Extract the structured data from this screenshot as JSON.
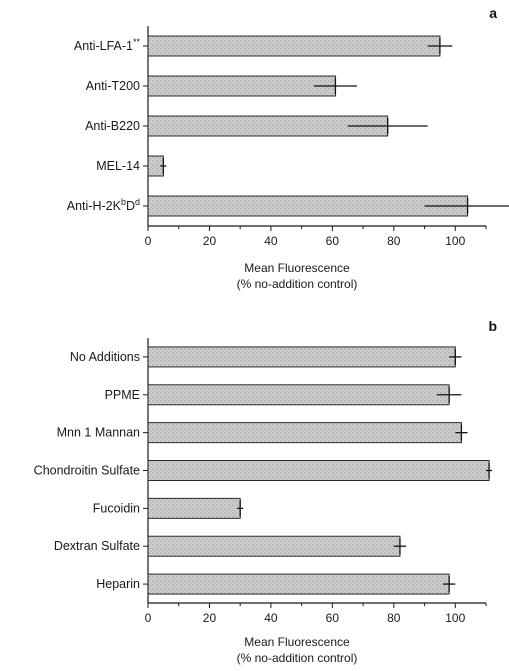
{
  "chart_data": [
    {
      "type": "bar",
      "orientation": "horizontal",
      "panel_label": "a",
      "categories": [
        "Anti-LFA-1**",
        "Anti-T200",
        "Anti-B220",
        "MEL-14",
        "Anti-H-2KbDd"
      ],
      "category_display": [
        {
          "main": "Anti-LFA-1",
          "sup": "**",
          "rest": "",
          "sup2": "",
          "tail": ""
        },
        {
          "main": "Anti-T200",
          "sup": "",
          "rest": "",
          "sup2": "",
          "tail": ""
        },
        {
          "main": "Anti-B220",
          "sup": "",
          "rest": "",
          "sup2": "",
          "tail": ""
        },
        {
          "main": "MEL-14",
          "sup": "",
          "rest": "",
          "sup2": "",
          "tail": ""
        },
        {
          "main": "Anti-H-2K",
          "sup": "b",
          "rest": "D",
          "sup2": "d",
          "tail": ""
        }
      ],
      "values": [
        95,
        61,
        78,
        5,
        104
      ],
      "errors": [
        4,
        7,
        13,
        1,
        14
      ],
      "xlabel": "Mean Fluorescence",
      "xlabel2": "(% no-addition control)",
      "xlim": [
        0,
        110
      ],
      "xticks": [
        "0",
        "20",
        "40",
        "60",
        "80",
        "100"
      ],
      "grid": false
    },
    {
      "type": "bar",
      "orientation": "horizontal",
      "panel_label": "b",
      "categories": [
        "No Additions",
        "PPME",
        "Mnn 1 Mannan",
        "Chondroitin Sulfate",
        "Fucoidin",
        "Dextran Sulfate",
        "Heparin"
      ],
      "category_display": [
        {
          "main": "No Additions",
          "sup": "",
          "rest": "",
          "sup2": "",
          "tail": ""
        },
        {
          "main": "PPME",
          "sup": "",
          "rest": "",
          "sup2": "",
          "tail": ""
        },
        {
          "main": "Mnn 1 Mannan",
          "sup": "",
          "rest": "",
          "sup2": "",
          "tail": ""
        },
        {
          "main": "Chondroitin Sulfate",
          "sup": "",
          "rest": "",
          "sup2": "",
          "tail": ""
        },
        {
          "main": "Fucoidin",
          "sup": "",
          "rest": "",
          "sup2": "",
          "tail": ""
        },
        {
          "main": "Dextran Sulfate",
          "sup": "",
          "rest": "",
          "sup2": "",
          "tail": ""
        },
        {
          "main": "Heparin",
          "sup": "",
          "rest": "",
          "sup2": "",
          "tail": ""
        }
      ],
      "values": [
        100,
        98,
        102,
        111,
        30,
        82,
        98
      ],
      "errors": [
        2,
        4,
        2,
        1,
        1,
        2,
        2
      ],
      "xlabel": "Mean Fluorescence",
      "xlabel2": "(% no-addition control)",
      "xlim": [
        0,
        110
      ],
      "xticks": [
        "0",
        "20",
        "40",
        "60",
        "80",
        "100"
      ],
      "grid": false
    }
  ],
  "colors": {
    "bar_fill": "#c9c9c9",
    "bar_stroke": "#2a2a2a",
    "axis": "#1a1a1a"
  }
}
